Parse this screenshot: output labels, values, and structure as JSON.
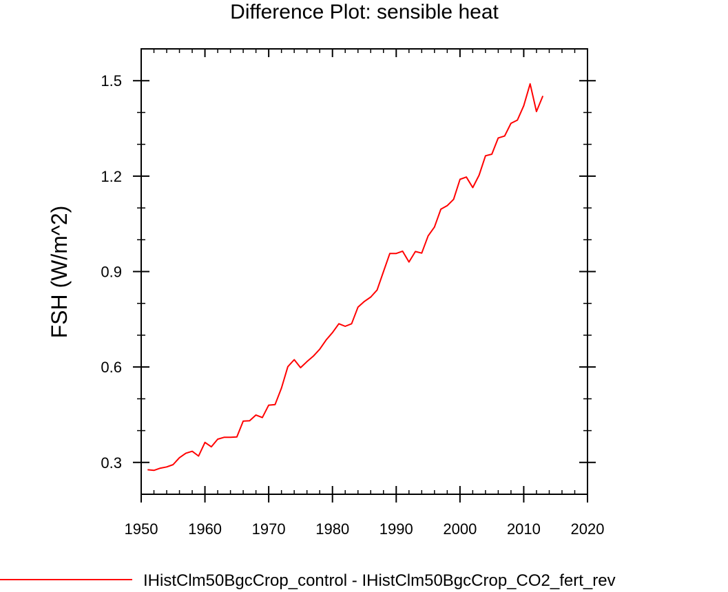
{
  "chart_data": {
    "type": "line",
    "title": "Difference Plot: sensible heat",
    "xlabel": "",
    "ylabel": "FSH  (W/m^2)",
    "xlim": [
      1950,
      2020
    ],
    "ylim": [
      0.2,
      1.6
    ],
    "xticks": [
      1950,
      1960,
      1970,
      1980,
      1990,
      2000,
      2010,
      2020
    ],
    "xtick_labels": [
      "1950",
      "1960",
      "1970",
      "1980",
      "1990",
      "2000",
      "2010",
      "2020"
    ],
    "yticks": [
      0.3,
      0.6,
      0.9,
      1.2,
      1.5
    ],
    "ytick_labels": [
      "0.3",
      "0.6",
      "0.9",
      "1.2",
      "1.5"
    ],
    "grid": false,
    "legend_position": "bottom",
    "series": [
      {
        "name": "IHistClm50BgcCrop_control - IHistClm50BgcCrop_CO2_fert_rev",
        "color": "#ff0000",
        "x": [
          1951,
          1952,
          1953,
          1954,
          1955,
          1956,
          1957,
          1958,
          1959,
          1960,
          1961,
          1962,
          1963,
          1964,
          1965,
          1966,
          1967,
          1968,
          1969,
          1970,
          1971,
          1972,
          1973,
          1974,
          1975,
          1976,
          1977,
          1978,
          1979,
          1980,
          1981,
          1982,
          1983,
          1984,
          1985,
          1986,
          1987,
          1988,
          1989,
          1990,
          1991,
          1992,
          1993,
          1994,
          1995,
          1996,
          1997,
          1998,
          1999,
          2000,
          2001,
          2002,
          2003,
          2004,
          2005,
          2006,
          2007,
          2008,
          2009,
          2010,
          2011,
          2012,
          2013
        ],
        "y": [
          0.277,
          0.275,
          0.282,
          0.286,
          0.293,
          0.315,
          0.329,
          0.335,
          0.32,
          0.363,
          0.349,
          0.373,
          0.379,
          0.379,
          0.38,
          0.43,
          0.431,
          0.449,
          0.441,
          0.48,
          0.482,
          0.534,
          0.601,
          0.623,
          0.598,
          0.617,
          0.634,
          0.656,
          0.685,
          0.708,
          0.736,
          0.728,
          0.736,
          0.788,
          0.806,
          0.82,
          0.842,
          0.9,
          0.957,
          0.957,
          0.964,
          0.93,
          0.963,
          0.958,
          1.012,
          1.04,
          1.096,
          1.107,
          1.127,
          1.19,
          1.197,
          1.164,
          1.203,
          1.264,
          1.269,
          1.32,
          1.326,
          1.366,
          1.376,
          1.421,
          1.49,
          1.403,
          1.452
        ]
      }
    ]
  }
}
